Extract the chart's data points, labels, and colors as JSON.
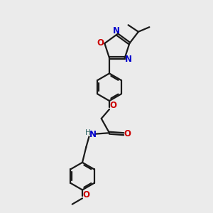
{
  "bg_color": "#ebebeb",
  "bond_color": "#1a1a1a",
  "N_color": "#0000cc",
  "O_color": "#cc0000",
  "N_teal_color": "#336666",
  "line_width": 1.6,
  "font_size": 8.5,
  "fig_size": [
    3.0,
    3.0
  ],
  "dpi": 100,
  "xlim": [
    0,
    10
  ],
  "ylim": [
    0,
    10
  ]
}
